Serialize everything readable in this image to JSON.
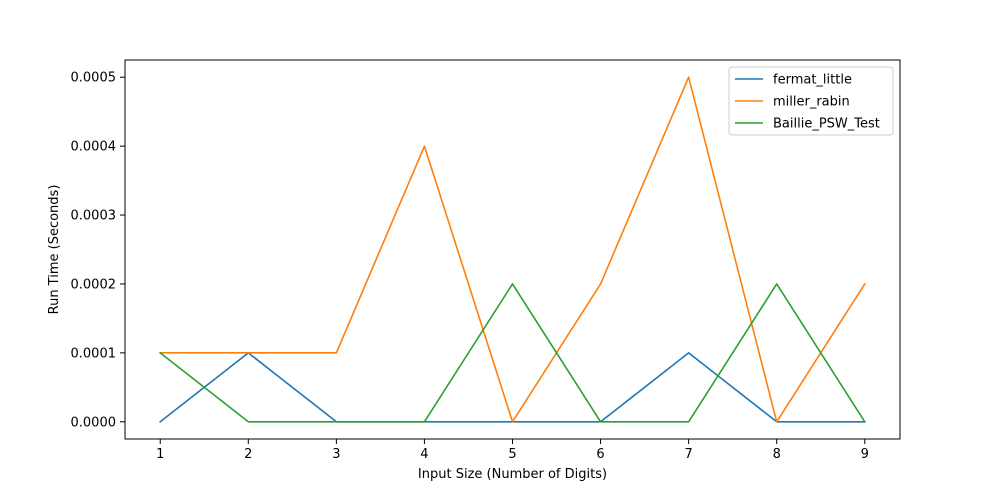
{
  "chart_data": {
    "type": "line",
    "title": "",
    "xlabel": "Input Size (Number of Digits)",
    "ylabel": "Run Time (Seconds)",
    "x": [
      1,
      2,
      3,
      4,
      5,
      6,
      7,
      8,
      9
    ],
    "xticks": [
      "1",
      "2",
      "3",
      "4",
      "5",
      "6",
      "7",
      "8",
      "9"
    ],
    "yticks": [
      "0.0000",
      "0.0001",
      "0.0002",
      "0.0003",
      "0.0004",
      "0.0005"
    ],
    "ytick_values": [
      0,
      0.0001,
      0.0002,
      0.0003,
      0.0004,
      0.0005
    ],
    "xlim": [
      0.6,
      9.4
    ],
    "ylim": [
      -2.5e-05,
      0.000525
    ],
    "grid": false,
    "legend_position": "top-right",
    "series": [
      {
        "name": "fermat_little",
        "color": "#1f77b4",
        "values": [
          0,
          0.0001,
          0,
          0,
          0,
          0,
          0.0001,
          0,
          0
        ]
      },
      {
        "name": "miller_rabin",
        "color": "#ff7f0e",
        "values": [
          0.0001,
          0.0001,
          0.0001,
          0.0004,
          0,
          0.0002,
          0.0005,
          0,
          0.0002
        ]
      },
      {
        "name": "Baillie_PSW_Test",
        "color": "#2ca02c",
        "values": [
          0.0001,
          0,
          0,
          0,
          0.0002,
          0,
          0,
          0.0002,
          0
        ]
      }
    ]
  }
}
